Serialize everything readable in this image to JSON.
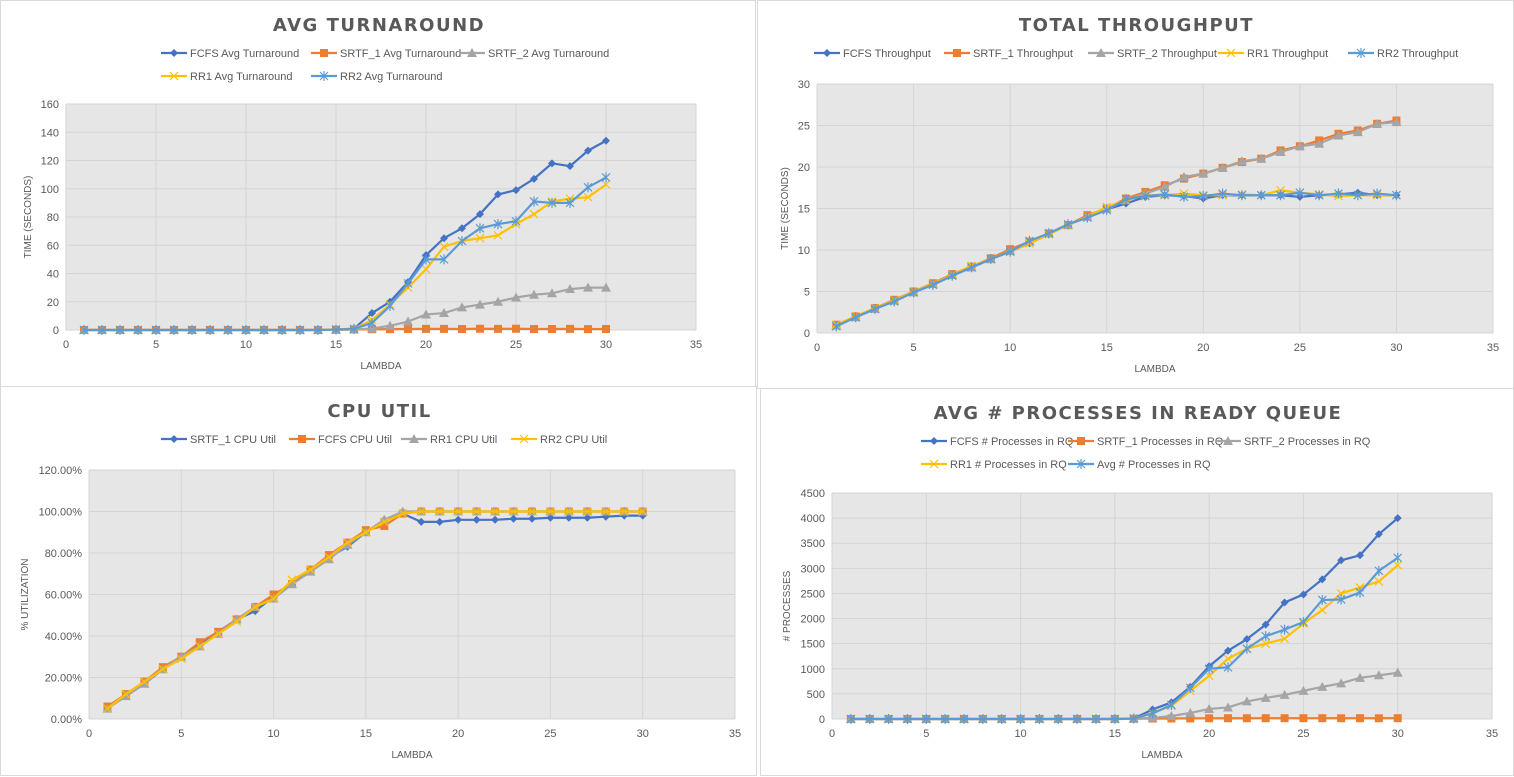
{
  "chart_data": [
    {
      "id": "turnaround",
      "type": "line",
      "title": "AVG TURNAROUND",
      "xlabel": "LAMBDA",
      "ylabel": "TIME (SECONDS)",
      "xlim": [
        0,
        35
      ],
      "ylim": [
        0,
        160
      ],
      "xticks": [
        0,
        5,
        10,
        15,
        20,
        25,
        30,
        35
      ],
      "yticks": [
        0,
        20,
        40,
        60,
        80,
        100,
        120,
        140,
        160
      ],
      "ytick_format": "int",
      "grid": true,
      "legend_position": "top",
      "x": [
        1,
        2,
        3,
        4,
        5,
        6,
        7,
        8,
        9,
        10,
        11,
        12,
        13,
        14,
        15,
        16,
        17,
        18,
        19,
        20,
        21,
        22,
        23,
        24,
        25,
        26,
        27,
        28,
        29,
        30
      ],
      "series": [
        {
          "name": "FCFS Avg Turnaround",
          "color": "#4472c4",
          "marker": "diamond",
          "values": [
            0,
            0,
            0,
            0,
            0,
            0,
            0,
            0,
            0,
            0,
            0,
            0,
            0,
            0,
            0.3,
            1,
            12,
            20,
            34,
            53,
            65,
            72,
            82,
            96,
            99,
            107,
            118,
            116,
            127,
            134
          ]
        },
        {
          "name": "SRTF_1 Avg Turnaround",
          "color": "#ed7d31",
          "marker": "square",
          "values": [
            0,
            0,
            0,
            0,
            0,
            0,
            0,
            0,
            0,
            0,
            0,
            0,
            0,
            0,
            0.2,
            0.3,
            0.5,
            0.6,
            0.7,
            0.8,
            0.8,
            0.7,
            0.9,
            0.8,
            0.9,
            0.7,
            0.7,
            0.8,
            0.6,
            0.7
          ]
        },
        {
          "name": "SRTF_2 Avg Turnaround",
          "color": "#a5a5a5",
          "marker": "triangle",
          "values": [
            0,
            0,
            0,
            0,
            0,
            0,
            0,
            0,
            0,
            0,
            0,
            0,
            0,
            0,
            0.2,
            0.4,
            1,
            3,
            6,
            11,
            12,
            16,
            18,
            20,
            23,
            25,
            26,
            29,
            30,
            30
          ]
        },
        {
          "name": "RR1 Avg Turnaround",
          "color": "#ffc000",
          "marker": "x",
          "values": [
            0,
            0,
            0,
            0,
            0,
            0,
            0,
            0,
            0,
            0,
            0,
            0,
            0,
            0,
            0.3,
            0.8,
            7,
            18,
            30,
            43,
            59,
            63,
            65,
            67,
            75,
            82,
            91,
            93,
            94,
            103
          ]
        },
        {
          "name": "RR2 Avg Turnaround",
          "color": "#5b9bd5",
          "marker": "star",
          "values": [
            0,
            0,
            0,
            0,
            0,
            0,
            0,
            0,
            0,
            0,
            0,
            0,
            0,
            0,
            0.3,
            0.8,
            5,
            17,
            33,
            50,
            50,
            63,
            72,
            75,
            77,
            91,
            90,
            90,
            101,
            108
          ]
        }
      ]
    },
    {
      "id": "throughput",
      "type": "line",
      "title": "TOTAL THROUGHPUT",
      "xlabel": "LAMBDA",
      "ylabel": "TIME (SECONDS)",
      "xlim": [
        0,
        35
      ],
      "ylim": [
        0,
        30
      ],
      "xticks": [
        0,
        5,
        10,
        15,
        20,
        25,
        30,
        35
      ],
      "yticks": [
        0,
        5,
        10,
        15,
        20,
        25,
        30
      ],
      "ytick_format": "int",
      "grid": true,
      "legend_position": "top",
      "x": [
        1,
        2,
        3,
        4,
        5,
        6,
        7,
        8,
        9,
        10,
        11,
        12,
        13,
        14,
        15,
        16,
        17,
        18,
        19,
        20,
        21,
        22,
        23,
        24,
        25,
        26,
        27,
        28,
        29,
        30
      ],
      "series": [
        {
          "name": "FCFS Throughput",
          "color": "#4472c4",
          "marker": "diamond",
          "values": [
            0.9,
            1.9,
            2.9,
            3.9,
            4.9,
            5.8,
            6.9,
            7.9,
            8.9,
            9.8,
            10.8,
            11.9,
            13.1,
            13.9,
            14.9,
            15.6,
            16.4,
            16.6,
            16.5,
            16.2,
            16.6,
            16.6,
            16.6,
            16.6,
            16.4,
            16.6,
            16.7,
            16.9,
            16.6,
            16.6
          ]
        },
        {
          "name": "SRTF_1 Throughput",
          "color": "#ed7d31",
          "marker": "square",
          "values": [
            1.0,
            2.0,
            3.0,
            4.0,
            5.0,
            6.0,
            7.1,
            8.0,
            9.0,
            10.1,
            11.0,
            12.0,
            13.0,
            14.2,
            15.0,
            16.2,
            17.0,
            17.8,
            18.6,
            19.2,
            19.9,
            20.6,
            21.0,
            22.0,
            22.5,
            23.2,
            24.0,
            24.4,
            25.2,
            25.6
          ]
        },
        {
          "name": "SRTF_2 Throughput",
          "color": "#a5a5a5",
          "marker": "triangle",
          "values": [
            0.9,
            1.9,
            2.9,
            3.9,
            4.9,
            5.9,
            7.0,
            7.9,
            8.9,
            9.9,
            11.0,
            12.0,
            13.0,
            14.0,
            15.0,
            16.0,
            16.8,
            17.6,
            18.8,
            19.2,
            19.9,
            20.7,
            21.0,
            21.8,
            22.5,
            22.8,
            23.8,
            24.2,
            25.2,
            25.4
          ]
        },
        {
          "name": "RR1 Throughput",
          "color": "#ffc000",
          "marker": "x",
          "values": [
            1.0,
            2.0,
            3.0,
            3.9,
            5.0,
            5.9,
            7.0,
            8.1,
            8.9,
            9.8,
            10.8,
            11.9,
            13.0,
            14.0,
            15.2,
            16.0,
            16.6,
            16.6,
            16.8,
            16.6,
            16.6,
            16.7,
            16.6,
            17.2,
            16.9,
            16.7,
            16.5,
            16.6,
            16.6,
            16.6
          ]
        },
        {
          "name": "RR2 Throughput",
          "color": "#5b9bd5",
          "marker": "star",
          "values": [
            0.8,
            1.9,
            2.9,
            3.8,
            4.9,
            5.8,
            6.9,
            7.9,
            8.9,
            9.8,
            11.1,
            12.0,
            13.1,
            13.9,
            14.8,
            16.1,
            16.5,
            16.7,
            16.4,
            16.5,
            16.8,
            16.6,
            16.6,
            16.6,
            16.9,
            16.6,
            16.8,
            16.6,
            16.8,
            16.6
          ]
        }
      ]
    },
    {
      "id": "cpuutil",
      "type": "line",
      "title": "CPU UTIL",
      "xlabel": "LAMBDA",
      "ylabel": "% UTILIZATION",
      "xlim": [
        0,
        35
      ],
      "ylim": [
        0,
        1.2
      ],
      "xticks": [
        0,
        5,
        10,
        15,
        20,
        25,
        30,
        35
      ],
      "yticks": [
        0,
        0.2,
        0.4,
        0.6,
        0.8,
        1.0,
        1.2
      ],
      "ytick_format": "percent",
      "grid": true,
      "legend_position": "top",
      "x": [
        1,
        2,
        3,
        4,
        5,
        6,
        7,
        8,
        9,
        10,
        11,
        12,
        13,
        14,
        15,
        16,
        17,
        18,
        19,
        20,
        21,
        22,
        23,
        24,
        25,
        26,
        27,
        28,
        29,
        30
      ],
      "series": [
        {
          "name": "SRTF_1 CPU Util",
          "color": "#4472c4",
          "marker": "diamond",
          "values": [
            0.06,
            0.11,
            0.17,
            0.24,
            0.3,
            0.36,
            0.42,
            0.48,
            0.52,
            0.59,
            0.65,
            0.72,
            0.78,
            0.83,
            0.9,
            0.96,
            0.99,
            0.95,
            0.95,
            0.96,
            0.96,
            0.96,
            0.965,
            0.965,
            0.97,
            0.97,
            0.97,
            0.975,
            0.98,
            0.98
          ]
        },
        {
          "name": "FCFS CPU Util",
          "color": "#ed7d31",
          "marker": "square",
          "values": [
            0.06,
            0.12,
            0.18,
            0.25,
            0.3,
            0.37,
            0.42,
            0.48,
            0.54,
            0.6,
            0.65,
            0.72,
            0.79,
            0.85,
            0.91,
            0.93,
            0.99,
            1.0,
            1.0,
            1.0,
            1.0,
            1.0,
            1.0,
            1.0,
            1.0,
            1.0,
            1.0,
            1.0,
            1.0,
            1.0
          ]
        },
        {
          "name": "RR1 CPU Util",
          "color": "#a5a5a5",
          "marker": "triangle",
          "values": [
            0.05,
            0.11,
            0.17,
            0.24,
            0.3,
            0.35,
            0.41,
            0.48,
            0.54,
            0.58,
            0.65,
            0.71,
            0.77,
            0.84,
            0.9,
            0.96,
            1.0,
            1.0,
            1.0,
            1.0,
            1.0,
            1.0,
            1.0,
            1.0,
            1.0,
            1.0,
            1.0,
            1.0,
            1.0,
            1.0
          ]
        },
        {
          "name": "RR2 CPU Util",
          "color": "#ffc000",
          "marker": "x",
          "values": [
            0.05,
            0.12,
            0.18,
            0.24,
            0.29,
            0.35,
            0.41,
            0.47,
            0.54,
            0.58,
            0.67,
            0.72,
            0.78,
            0.85,
            0.9,
            0.95,
            0.99,
            1.0,
            1.0,
            1.0,
            1.0,
            1.0,
            1.0,
            1.0,
            1.0,
            1.0,
            1.0,
            1.0,
            1.0,
            1.0
          ]
        }
      ]
    },
    {
      "id": "readyqueue",
      "type": "line",
      "title": "AVG # PROCESSES IN READY QUEUE",
      "xlabel": "LAMBDA",
      "ylabel": "# PROCESSES",
      "xlim": [
        0,
        35
      ],
      "ylim": [
        0,
        4500
      ],
      "xticks": [
        0,
        5,
        10,
        15,
        20,
        25,
        30,
        35
      ],
      "yticks": [
        0,
        500,
        1000,
        1500,
        2000,
        2500,
        3000,
        3500,
        4000,
        4500
      ],
      "ytick_format": "int",
      "grid": true,
      "legend_position": "top",
      "x": [
        1,
        2,
        3,
        4,
        5,
        6,
        7,
        8,
        9,
        10,
        11,
        12,
        13,
        14,
        15,
        16,
        17,
        18,
        19,
        20,
        21,
        22,
        23,
        24,
        25,
        26,
        27,
        28,
        29,
        30
      ],
      "series": [
        {
          "name": "FCFS # Processes in RQ",
          "color": "#4472c4",
          "marker": "diamond",
          "values": [
            0,
            0,
            0,
            0,
            0,
            0,
            0,
            0,
            0,
            0,
            0,
            0,
            0,
            0,
            0,
            10,
            190,
            330,
            640,
            1050,
            1360,
            1590,
            1880,
            2320,
            2480,
            2780,
            3160,
            3260,
            3680,
            4000
          ]
        },
        {
          "name": "SRTF_1 Processes in RQ",
          "color": "#ed7d31",
          "marker": "square",
          "values": [
            0,
            0,
            0,
            0,
            0,
            0,
            0,
            0,
            0,
            0,
            0,
            0,
            0,
            0,
            0,
            5,
            8,
            10,
            12,
            14,
            15,
            15,
            16,
            16,
            16,
            16,
            15,
            16,
            15,
            16
          ]
        },
        {
          "name": "SRTF_2 Processes in RQ",
          "color": "#a5a5a5",
          "marker": "triangle",
          "values": [
            0,
            0,
            0,
            0,
            0,
            0,
            0,
            0,
            0,
            0,
            0,
            0,
            0,
            0,
            0,
            5,
            20,
            60,
            120,
            200,
            230,
            350,
            420,
            480,
            560,
            640,
            710,
            820,
            870,
            920
          ]
        },
        {
          "name": "RR1 # Processes in RQ",
          "color": "#ffc000",
          "marker": "x",
          "values": [
            0,
            0,
            0,
            0,
            0,
            0,
            0,
            0,
            0,
            0,
            0,
            0,
            0,
            0,
            0,
            10,
            120,
            260,
            560,
            860,
            1200,
            1400,
            1500,
            1600,
            1900,
            2170,
            2500,
            2620,
            2740,
            3060
          ]
        },
        {
          "name": "Avg # Processes in RQ",
          "color": "#5b9bd5",
          "marker": "star",
          "values": [
            0,
            0,
            0,
            0,
            0,
            0,
            0,
            0,
            0,
            0,
            0,
            0,
            0,
            0,
            0,
            10,
            110,
            280,
            620,
            1000,
            1030,
            1400,
            1650,
            1780,
            1930,
            2370,
            2380,
            2520,
            2950,
            3210
          ]
        }
      ]
    }
  ]
}
